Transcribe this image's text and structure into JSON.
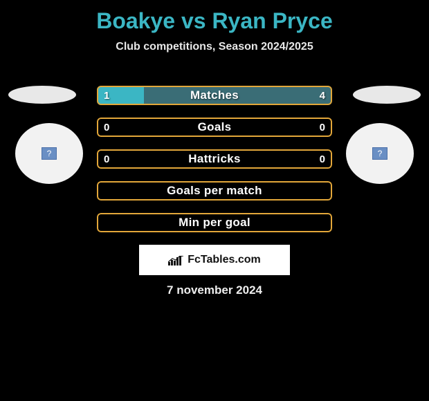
{
  "title": "Boakye vs Ryan Pryce",
  "subtitle": "Club competitions, Season 2024/2025",
  "date": "7 november 2024",
  "brand": "FcTables.com",
  "colors": {
    "title": "#3bb6c4",
    "text": "#e8e8e8",
    "bg": "#000000",
    "border": "#e3a73a",
    "fill_left": "#3bb6c4",
    "fill_right": "#3a6d76",
    "badge_bg": "#f2f2f2",
    "brand_bg": "#ffffff"
  },
  "bars": [
    {
      "label": "Matches",
      "left_val": "1",
      "right_val": "4",
      "left_pct": 20,
      "right_pct": 80,
      "show_vals": true
    },
    {
      "label": "Goals",
      "left_val": "0",
      "right_val": "0",
      "left_pct": 0,
      "right_pct": 0,
      "show_vals": true
    },
    {
      "label": "Hattricks",
      "left_val": "0",
      "right_val": "0",
      "left_pct": 0,
      "right_pct": 0,
      "show_vals": true
    },
    {
      "label": "Goals per match",
      "left_val": "",
      "right_val": "",
      "left_pct": 0,
      "right_pct": 0,
      "show_vals": false
    },
    {
      "label": "Min per goal",
      "left_val": "",
      "right_val": "",
      "left_pct": 0,
      "right_pct": 0,
      "show_vals": false
    }
  ]
}
